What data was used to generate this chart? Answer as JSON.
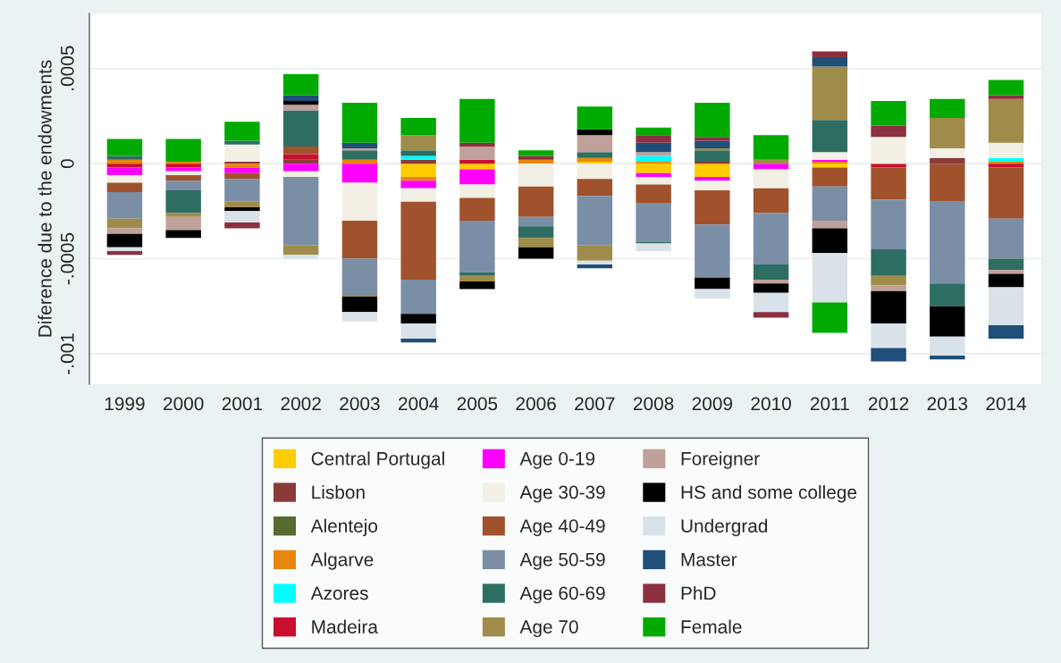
{
  "chart_data": {
    "type": "bar",
    "stacked": true,
    "ylabel": "Diference due to the endowments",
    "categories": [
      "1999",
      "2000",
      "2001",
      "2002",
      "2003",
      "2004",
      "2005",
      "2006",
      "2007",
      "2008",
      "2009",
      "2010",
      "2011",
      "2012",
      "2013",
      "2014"
    ],
    "series": [
      {
        "name": "Central Portugal",
        "color": "#ffcc00",
        "values": [
          0,
          0,
          0,
          0,
          0,
          -7e-05,
          -3e-05,
          0,
          1e-05,
          -5e-05,
          -7e-05,
          0,
          -2e-05,
          0,
          0,
          0
        ]
      },
      {
        "name": "Lisbon",
        "color": "#8b3a3a",
        "values": [
          0,
          0,
          1e-05,
          2e-05,
          0,
          2e-05,
          0,
          0,
          0,
          0,
          1e-05,
          0,
          0,
          0,
          3e-05,
          0
        ]
      },
      {
        "name": "Alentejo",
        "color": "#556b2f",
        "values": [
          0,
          0,
          0,
          0,
          0,
          0,
          0,
          0,
          0,
          0,
          0,
          0,
          0,
          0,
          0,
          0
        ]
      },
      {
        "name": "Algarve",
        "color": "#e8870e",
        "values": [
          2e-05,
          1e-05,
          -2e-05,
          0,
          2e-05,
          -2e-05,
          0,
          2e-05,
          2e-05,
          1e-05,
          0,
          0,
          1e-05,
          0,
          0,
          1e-05
        ]
      },
      {
        "name": "Azores",
        "color": "#00ffff",
        "values": [
          0,
          0,
          0,
          0,
          0,
          2e-05,
          0,
          0,
          0,
          3e-05,
          0,
          0,
          0,
          0,
          0,
          2e-05
        ]
      },
      {
        "name": "Madeira",
        "color": "#c8102e",
        "values": [
          -2e-05,
          -2e-05,
          0,
          3e-05,
          0,
          0,
          2e-05,
          0,
          0,
          0,
          0,
          0,
          0,
          -2e-05,
          0,
          -2e-05
        ]
      },
      {
        "name": "Age 0-19",
        "color": "#ff00ff",
        "values": [
          -4e-05,
          -2e-05,
          -3e-05,
          -4e-05,
          -0.0001,
          -4e-05,
          -8e-05,
          0,
          0,
          -2e-05,
          -2e-05,
          -3e-05,
          1e-05,
          0,
          0,
          0
        ]
      },
      {
        "name": "Age 30-39",
        "color": "#f2f0e4",
        "values": [
          -4e-05,
          -2e-05,
          9e-05,
          -3e-05,
          -0.0002,
          -7e-05,
          -7e-05,
          -0.00012,
          -8e-05,
          -4e-05,
          -5e-05,
          -0.0001,
          4e-05,
          0.00014,
          5e-05,
          8e-05
        ]
      },
      {
        "name": "Age 40-49",
        "color": "#a0522d",
        "values": [
          -5e-05,
          -3e-05,
          -3e-05,
          4e-05,
          -0.0002,
          -0.00041,
          -0.00012,
          -0.00016,
          -9e-05,
          -0.0001,
          -0.00018,
          -0.00013,
          -0.0001,
          -0.00017,
          -0.0002,
          -0.00027
        ]
      },
      {
        "name": "Age 50-59",
        "color": "#7a8fa6",
        "values": [
          -0.00014,
          -5e-05,
          -0.00012,
          -0.00036,
          -0.00019,
          -0.00018,
          -0.00027,
          -5e-05,
          -0.00026,
          -0.0002,
          -0.00028,
          -0.00027,
          -0.00018,
          -0.00026,
          -0.00043,
          -0.00021
        ]
      },
      {
        "name": "Age 60-69",
        "color": "#2e6e62",
        "values": [
          2e-05,
          -0.00012,
          2e-05,
          0.00019,
          5e-05,
          3e-05,
          -2e-05,
          -6e-05,
          3e-05,
          -1e-05,
          6e-05,
          -8e-05,
          0.00017,
          -0.00014,
          -0.00012,
          -6e-05
        ]
      },
      {
        "name": "Age 70",
        "color": "#a08c4a",
        "values": [
          -5e-05,
          -2e-05,
          -3e-05,
          -5e-05,
          -1e-05,
          8e-05,
          -3e-05,
          -5e-05,
          -8e-05,
          0,
          1e-05,
          2e-05,
          0.00028,
          -5e-05,
          0.00016,
          0.00023
        ]
      },
      {
        "name": "Foreigner",
        "color": "#c0a09a",
        "values": [
          -3e-05,
          -7e-05,
          0,
          3e-05,
          1e-05,
          0,
          7e-05,
          0,
          9e-05,
          2e-05,
          0,
          -2e-05,
          -4e-05,
          -3e-05,
          0,
          -2e-05
        ]
      },
      {
        "name": "HS and some college",
        "color": "#000000",
        "values": [
          -7e-05,
          -4e-05,
          -2e-05,
          2e-05,
          -8e-05,
          -5e-05,
          -4e-05,
          -6e-05,
          3e-05,
          0,
          -6e-05,
          -5e-05,
          -0.00013,
          -0.00017,
          -0.00016,
          -7e-05
        ]
      },
      {
        "name": "Undergrad",
        "color": "#d9e2e8",
        "values": [
          -2e-05,
          0,
          -6e-05,
          -2e-05,
          -5e-05,
          -8e-05,
          0,
          0,
          -2e-05,
          -4e-05,
          -5e-05,
          -0.0001,
          -0.00026,
          -0.00013,
          -0.0001,
          -0.0002
        ]
      },
      {
        "name": "Master",
        "color": "#1f4e79",
        "values": [
          0,
          0,
          0,
          3e-05,
          3e-05,
          -2e-05,
          0,
          0,
          -2e-05,
          5e-05,
          4e-05,
          0,
          5e-05,
          -7e-05,
          -2e-05,
          -7e-05
        ]
      },
      {
        "name": "PhD",
        "color": "#8b3040",
        "values": [
          -2e-05,
          0,
          -3e-05,
          0,
          0,
          0,
          2e-05,
          2e-05,
          0,
          4e-05,
          2e-05,
          -3e-05,
          3e-05,
          6e-05,
          0,
          2e-05
        ]
      },
      {
        "name": "Female",
        "color": "#00aa00",
        "values": [
          9e-05,
          0.00012,
          0.0001,
          0.00011,
          0.00021,
          9e-05,
          0.00023,
          3e-05,
          0.00012,
          4e-05,
          0.00018,
          0.00013,
          -0.00016,
          0.00013,
          0.0001,
          8e-05
        ]
      }
    ],
    "ylim": [
      -0.00116,
      0.00079
    ],
    "yticks": [
      {
        "value": -0.001,
        "label": "-.001"
      },
      {
        "value": -0.0005,
        "label": "-.0005"
      },
      0,
      {
        "value": 0.0005,
        "label": ".0005"
      }
    ],
    "grid": "y",
    "legend": "bottom"
  }
}
